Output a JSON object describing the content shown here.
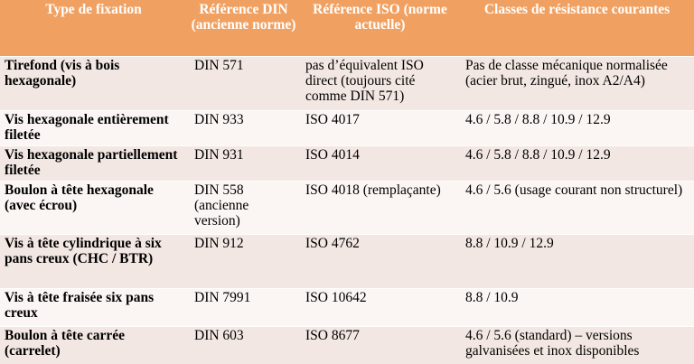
{
  "headers": {
    "type": "Type de fixation",
    "din": "Référence DIN (ancienne norme)",
    "iso": "Référence ISO (norme actuelle)",
    "classes": "Classes de résistance courantes"
  },
  "rows": [
    {
      "type": "Tirefond (vis à bois hexagonale)",
      "din": "DIN 571",
      "iso": "pas d’équivalent ISO direct (toujours cité comme DIN 571)",
      "classes": "Pas de classe mécanique normalisée (acier brut, zingué, inox A2/A4)"
    },
    {
      "type": "Vis hexagonale entièrement filetée",
      "din": "DIN 933",
      "iso": "ISO 4017",
      "classes": "4.6 / 5.8 / 8.8 / 10.9 / 12.9"
    },
    {
      "type": "Vis hexagonale partiellement filetée",
      "din": "DIN 931",
      "iso": "ISO 4014",
      "classes": "4.6 / 5.8 / 8.8 / 10.9 / 12.9"
    },
    {
      "type": "Boulon à tête hexagonale (avec écrou)",
      "din": "DIN 558 (ancienne version)",
      "iso": "ISO 4018 (remplaçante)",
      "classes": "4.6 / 5.6 (usage courant non structurel)"
    },
    {
      "type": "Vis à tête cylindrique à six pans creux (CHC / BTR)",
      "din": "DIN 912",
      "iso": "ISO 4762",
      "classes": "8.8 / 10.9 / 12.9"
    },
    {
      "type": "Vis à tête fraisée six pans creux",
      "din": "DIN 7991",
      "iso": "ISO 10642",
      "classes": "8.8 / 10.9"
    },
    {
      "type": "Boulon à tête carrée (carrelet)",
      "din": "DIN 603",
      "iso": "ISO 8677",
      "classes": "4.6 / 5.6 (standard) – versions galvanisées et inox disponibles"
    }
  ]
}
